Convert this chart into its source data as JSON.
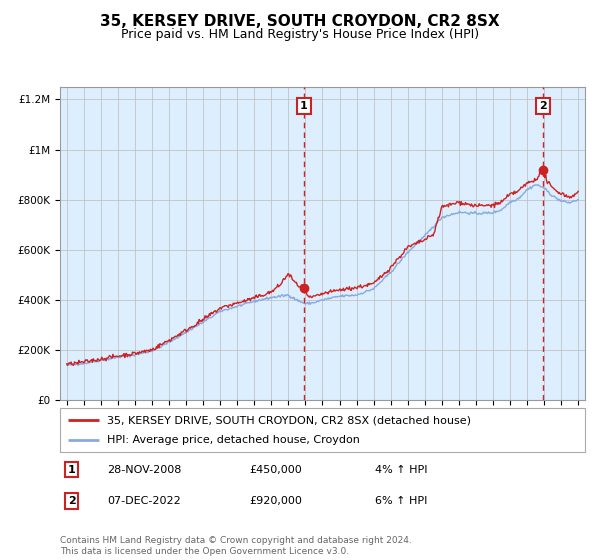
{
  "title": "35, KERSEY DRIVE, SOUTH CROYDON, CR2 8SX",
  "subtitle": "Price paid vs. HM Land Registry's House Price Index (HPI)",
  "ylim": [
    0,
    1250000
  ],
  "yticks": [
    0,
    200000,
    400000,
    600000,
    800000,
    1000000,
    1200000
  ],
  "ytick_labels": [
    "£0",
    "£200K",
    "£400K",
    "£600K",
    "£800K",
    "£1M",
    "£1.2M"
  ],
  "hpi_color": "#88aadd",
  "price_color": "#cc2222",
  "bg_color": "#ddeeff",
  "grid_color": "#bbbbbb",
  "sale1_date": 2008.91,
  "sale1_price": 450000,
  "sale2_date": 2022.93,
  "sale2_price": 920000,
  "annotation1_label": "1",
  "annotation2_label": "2",
  "legend_line1": "35, KERSEY DRIVE, SOUTH CROYDON, CR2 8SX (detached house)",
  "legend_line2": "HPI: Average price, detached house, Croydon",
  "note1_num": "1",
  "note1_date": "28-NOV-2008",
  "note1_price": "£450,000",
  "note1_hpi": "4% ↑ HPI",
  "note2_num": "2",
  "note2_date": "07-DEC-2022",
  "note2_price": "£920,000",
  "note2_hpi": "6% ↑ HPI",
  "footer": "Contains HM Land Registry data © Crown copyright and database right 2024.\nThis data is licensed under the Open Government Licence v3.0.",
  "title_fontsize": 11,
  "subtitle_fontsize": 9,
  "tick_fontsize": 7.5,
  "legend_fontsize": 8,
  "note_fontsize": 8,
  "footer_fontsize": 6.5
}
